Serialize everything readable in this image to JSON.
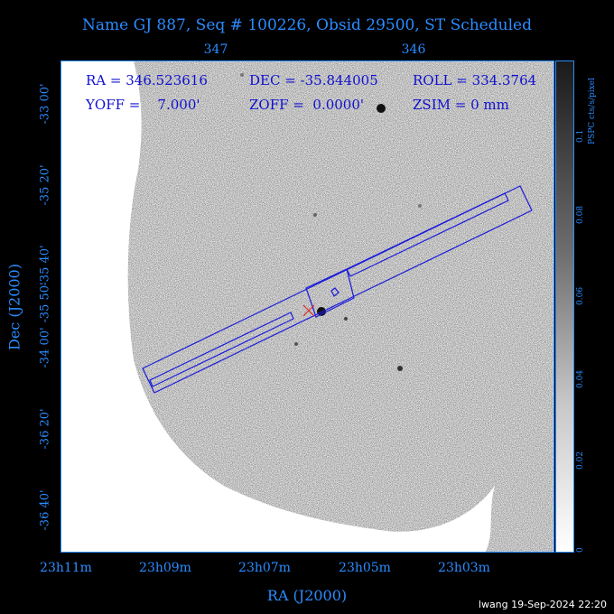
{
  "header": {
    "title": "Name GJ 887, Seq # 100226, Obsid 29500, ST Scheduled"
  },
  "top_axis": {
    "ticks": [
      "347",
      "346"
    ]
  },
  "y_axis": {
    "label": "Dec (J2000)",
    "ticks": [
      "-33 00'",
      "-35 20'",
      "-35 40'",
      "-35 50'",
      "-34 00'",
      "-36 20'",
      "-36 40'"
    ]
  },
  "x_axis": {
    "label": "RA (J2000)",
    "ticks": [
      "23h11m",
      "23h09m",
      "23h07m",
      "23h05m",
      "23h03m"
    ]
  },
  "overlay": {
    "ra": "RA = 346.523616",
    "dec": "DEC = -35.844005",
    "roll": "ROLL = 334.3764",
    "yoff": "YOFF =    7.000'",
    "zoff": "ZOFF =  0.0000'",
    "zsim": "ZSIM = 0 mm"
  },
  "colorbar": {
    "unit": "PSPC cts/s/pixel",
    "ticks": [
      "0.1",
      "0.08",
      "0.06",
      "0.04",
      "0.02",
      "0"
    ]
  },
  "colors": {
    "axis": "#2a8cff",
    "overlay": "#1010d0",
    "fov": "#1a1adc",
    "marker": "#e02020"
  },
  "footer": {
    "stamp": "lwang 19-Sep-2024 22:20"
  }
}
